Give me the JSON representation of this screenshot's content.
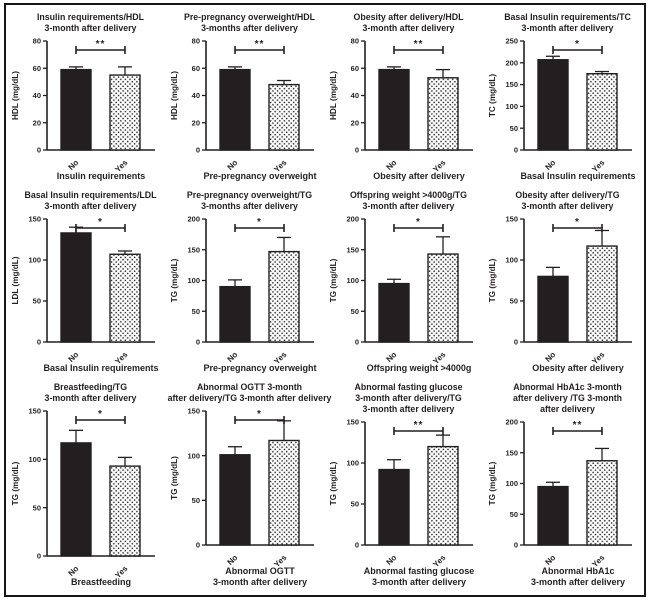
{
  "figure": {
    "background": "#ffffff",
    "border_color": "#151515",
    "ink_color": "#231f20",
    "bar_fill_no": "#231f20",
    "bar_fill_yes_pattern": "stipple-dots",
    "pattern_dot_color": "#3a3a3a",
    "categories": [
      "No",
      "Yes"
    ],
    "layout": "4 columns x 3 rows of GraphPad-style bar charts with error bars and significance brackets"
  },
  "chart_data": [
    {
      "type": "bar",
      "title_lines": [
        "Insulin requirements/HDL",
        "3-month after delivery"
      ],
      "ylabel": "HDL (mg/dL)",
      "ylim": [
        0,
        80
      ],
      "yticks": [
        0,
        20,
        40,
        60,
        80
      ],
      "categories": [
        "No",
        "Yes"
      ],
      "values": [
        59,
        55
      ],
      "errors": [
        2,
        6
      ],
      "significance": "**",
      "xlabel_lines": [
        "Insulin requirements"
      ]
    },
    {
      "type": "bar",
      "title_lines": [
        "Pre-pregnancy overweight/HDL",
        "3-months after delivery"
      ],
      "ylabel": "HDL (mg/dL)",
      "ylim": [
        0,
        80
      ],
      "yticks": [
        0,
        20,
        40,
        60,
        80
      ],
      "categories": [
        "No",
        "Yes"
      ],
      "values": [
        59,
        48
      ],
      "errors": [
        2,
        3
      ],
      "significance": "**",
      "xlabel_lines": [
        "Pre-pregnancy overweight"
      ]
    },
    {
      "type": "bar",
      "title_lines": [
        "Obesity after delivery/HDL",
        "3-month after delivery"
      ],
      "ylabel": "HDL (mg/dL)",
      "ylim": [
        0,
        80
      ],
      "yticks": [
        0,
        20,
        40,
        60,
        80
      ],
      "categories": [
        "No",
        "Yes"
      ],
      "values": [
        59,
        53
      ],
      "errors": [
        2,
        6
      ],
      "significance": "**",
      "xlabel_lines": [
        "Obesity after delivery"
      ]
    },
    {
      "type": "bar",
      "title_lines": [
        "Basal Insulin requirements/TC",
        "3-month after delivery"
      ],
      "ylabel": "TC (mg/dL)",
      "ylim": [
        0,
        250
      ],
      "yticks": [
        0,
        50,
        100,
        150,
        200,
        250
      ],
      "categories": [
        "No",
        "Yes"
      ],
      "values": [
        207,
        175
      ],
      "errors": [
        8,
        5
      ],
      "significance": "*",
      "xlabel_lines": [
        "Basal Insulin requirements"
      ]
    },
    {
      "type": "bar",
      "title_lines": [
        "Basal Insulin requirements/LDL",
        "3-month after delivery"
      ],
      "ylabel": "LDL (mg/dL)",
      "ylim": [
        0,
        150
      ],
      "yticks": [
        0,
        50,
        100,
        150
      ],
      "categories": [
        "No",
        "Yes"
      ],
      "values": [
        133,
        107
      ],
      "errors": [
        7,
        4
      ],
      "significance": "*",
      "xlabel_lines": [
        "Basal Insulin requirements"
      ]
    },
    {
      "type": "bar",
      "title_lines": [
        "Pre-pregnancy overweight/TG",
        "3-months after delivery"
      ],
      "ylabel": "TG (mg/dL)",
      "ylim": [
        0,
        200
      ],
      "yticks": [
        0,
        50,
        100,
        150,
        200
      ],
      "categories": [
        "No",
        "Yes"
      ],
      "values": [
        90,
        147
      ],
      "errors": [
        11,
        23
      ],
      "significance": "*",
      "xlabel_lines": [
        "Pre-pregnancy overweight"
      ]
    },
    {
      "type": "bar",
      "title_lines": [
        "Offspring weight >4000g/TG",
        "3-month after delivery"
      ],
      "ylabel": "TG (mg/dL)",
      "ylim": [
        0,
        200
      ],
      "yticks": [
        0,
        50,
        100,
        150,
        200
      ],
      "categories": [
        "No",
        "Yes"
      ],
      "values": [
        95,
        143
      ],
      "errors": [
        7,
        28
      ],
      "significance": "*",
      "xlabel_lines": [
        "Offspring weight >4000g"
      ]
    },
    {
      "type": "bar",
      "title_lines": [
        "Obesity after delivery/TG",
        "3-month after delivery"
      ],
      "ylabel": "TG (mg/dL)",
      "ylim": [
        0,
        150
      ],
      "yticks": [
        0,
        50,
        100,
        150
      ],
      "categories": [
        "No",
        "Yes"
      ],
      "values": [
        80,
        117
      ],
      "errors": [
        11,
        19
      ],
      "significance": "*",
      "xlabel_lines": [
        "Obesity after delivery"
      ]
    },
    {
      "type": "bar",
      "title_lines": [
        "Breastfeeding/TG",
        "3-month after delivery"
      ],
      "ylabel": "TG (mg/dL)",
      "ylim": [
        0,
        150
      ],
      "yticks": [
        0,
        50,
        100,
        150
      ],
      "categories": [
        "No",
        "Yes"
      ],
      "values": [
        117,
        93
      ],
      "errors": [
        13,
        9
      ],
      "significance": "*",
      "xlabel_lines": [
        "Breastfeeding"
      ]
    },
    {
      "type": "bar",
      "title_lines": [
        "Abnormal OGTT 3-month",
        "after delivery/TG 3-month after delivery"
      ],
      "ylabel": "TG (mg/dL)",
      "ylim": [
        0,
        150
      ],
      "yticks": [
        0,
        50,
        100,
        150
      ],
      "categories": [
        "No",
        "Yes"
      ],
      "values": [
        101,
        117
      ],
      "errors": [
        9,
        22
      ],
      "significance": "*",
      "xlabel_lines": [
        "Abnormal OGTT",
        "3-month after delivery"
      ]
    },
    {
      "type": "bar",
      "title_lines": [
        "Abnormal fasting glucose",
        "3-month after delivery/TG",
        "3-month after delivery"
      ],
      "ylabel": "TG (mg/dL)",
      "ylim": [
        0,
        150
      ],
      "yticks": [
        0,
        50,
        100,
        150
      ],
      "categories": [
        "No",
        "Yes"
      ],
      "values": [
        92,
        120
      ],
      "errors": [
        12,
        14
      ],
      "significance": "**",
      "xlabel_lines": [
        "Abnormal fasting glucose",
        "3-month after delivery"
      ]
    },
    {
      "type": "bar",
      "title_lines": [
        "Abnormal HbA1c 3-month",
        "after delivery /TG 3-month",
        "after delivery"
      ],
      "ylabel": "TG (mg/dL)",
      "ylim": [
        0,
        200
      ],
      "yticks": [
        0,
        50,
        100,
        150,
        200
      ],
      "categories": [
        "No",
        "Yes"
      ],
      "values": [
        95,
        137
      ],
      "errors": [
        7,
        20
      ],
      "significance": "**",
      "xlabel_lines": [
        "Abnormal HbA1c",
        "3-month after delivery"
      ]
    }
  ]
}
